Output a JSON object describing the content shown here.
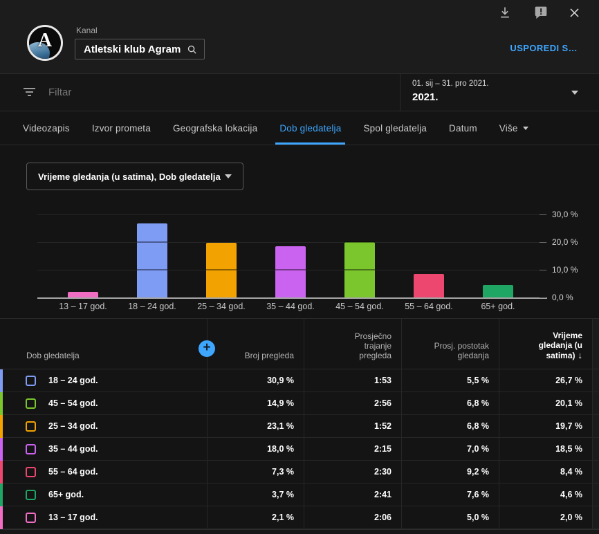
{
  "accent_color": "#3ea6ff",
  "icons": {
    "download": "arrow-down-to-tray",
    "feedback": "speech-bubble-exclamation",
    "close": "x",
    "search": "magnifier",
    "filter": "funnel-lines",
    "caret": "triangle-down",
    "sort": "arrow-down",
    "add_metric": "plus-in-circle"
  },
  "header": {
    "kanal_label": "Kanal",
    "channel_name": "Atletski klub Agram",
    "avatar_letter": "A",
    "compare_button": "USPOREDI S…"
  },
  "filter": {
    "placeholder": "Filtar"
  },
  "date_picker": {
    "range": "01. sij – 31. pro 2021.",
    "year": "2021."
  },
  "tabs": [
    {
      "label": "Videozapis",
      "active": false
    },
    {
      "label": "Izvor prometa",
      "active": false
    },
    {
      "label": "Geografska lokacija",
      "active": false
    },
    {
      "label": "Dob gledatelja",
      "active": true
    },
    {
      "label": "Spol gledatelja",
      "active": false
    },
    {
      "label": "Datum",
      "active": false
    },
    {
      "label": "Više",
      "active": false,
      "caret": true
    }
  ],
  "metric_select": {
    "value": "Vrijeme gledanja (u satima), Dob gledatelja"
  },
  "chart_data": {
    "type": "bar",
    "title": "Vrijeme gledanja (u satima), Dob gledatelja",
    "categories": [
      "13 – 17 god.",
      "18 – 24 god.",
      "25 – 34 god.",
      "35 – 44 god.",
      "45 – 54 god.",
      "55 – 64 god.",
      "65+ god."
    ],
    "values": [
      2.0,
      26.7,
      19.7,
      18.5,
      20.1,
      8.4,
      4.6
    ],
    "unit": "%",
    "colors": [
      "#ef6ec3",
      "#7f9cf5",
      "#f3a301",
      "#ca63f0",
      "#7bc62d",
      "#ee476f",
      "#1fa564"
    ],
    "yticks": [
      {
        "value": 30,
        "label": "30,0 %"
      },
      {
        "value": 20,
        "label": "20,0 %"
      },
      {
        "value": 10,
        "label": "10,0 %"
      },
      {
        "value": 0,
        "label": "0,0 %"
      }
    ],
    "ylim": [
      0,
      33.75
    ],
    "grid": true,
    "legend": "none",
    "y_axis_side": "right"
  },
  "table": {
    "headers": [
      "Dob gledatelja",
      "Broj pregleda",
      "Prosječno trajanje pregleda",
      "Prosj. postotak gledanja",
      "Vrijeme gledanja (u satima)"
    ],
    "sorted_by": "Vrijeme gledanja (u satima)",
    "sort_direction": "desc",
    "rows": [
      {
        "label": "18 – 24 god.",
        "color": "#7f9cf5",
        "views": "30,9 %",
        "avg_duration": "1:53",
        "avg_watch_pct": "5,5 %",
        "watch_time_pct": "26,7 %"
      },
      {
        "label": "45 – 54 god.",
        "color": "#7bc62d",
        "views": "14,9 %",
        "avg_duration": "2:56",
        "avg_watch_pct": "6,8 %",
        "watch_time_pct": "20,1 %"
      },
      {
        "label": "25 – 34 god.",
        "color": "#f3a301",
        "views": "23,1 %",
        "avg_duration": "1:52",
        "avg_watch_pct": "6,8 %",
        "watch_time_pct": "19,7 %"
      },
      {
        "label": "35 – 44 god.",
        "color": "#ca63f0",
        "views": "18,0 %",
        "avg_duration": "2:15",
        "avg_watch_pct": "7,0 %",
        "watch_time_pct": "18,5 %"
      },
      {
        "label": "55 – 64 god.",
        "color": "#ee476f",
        "views": "7,3 %",
        "avg_duration": "2:30",
        "avg_watch_pct": "9,2 %",
        "watch_time_pct": "8,4 %"
      },
      {
        "label": "65+ god.",
        "color": "#1fa564",
        "views": "3,7 %",
        "avg_duration": "2:41",
        "avg_watch_pct": "7,6 %",
        "watch_time_pct": "4,6 %"
      },
      {
        "label": "13 – 17 god.",
        "color": "#ef6ec3",
        "views": "2,1 %",
        "avg_duration": "2:06",
        "avg_watch_pct": "5,0 %",
        "watch_time_pct": "2,0 %"
      }
    ]
  }
}
